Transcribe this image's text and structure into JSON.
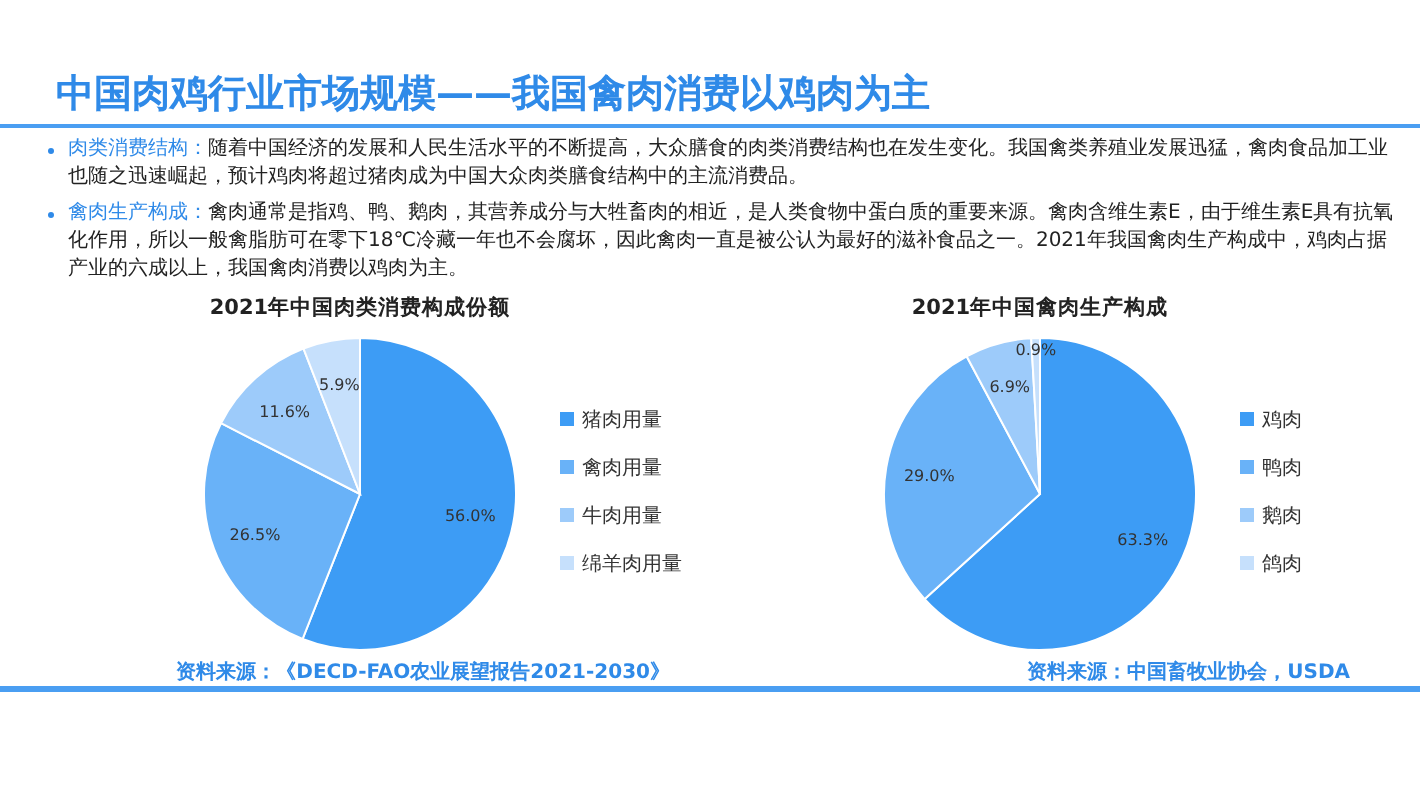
{
  "chart_data": [
    {
      "type": "other",
      "title": "中国肉鸡行业市场规模——我国禽肉消费以鸡肉为主",
      "annotations": [
        "肉类消费结构：随着中国经济的发展和人民生活水平的不断提高，大众膳食的肉类消费结构也在发生变化。我国禽类养殖业发展迅猛，禽肉食品加工业也随之迅速崛起，预计鸡肉将超过猪肉成为中国大众肉类膳食结构中的主流消费品。",
        "禽肉生产构成：禽肉通常是指鸡、鸭、鹅肉，其营养成分与大牲畜肉的相近，是人类食物中蛋白质的重要来源。禽肉含维生素E，由于维生素E具有抗氧化作用，所以一般禽脂肪可在零下18℃冷藏一年也不会腐坏，因此禽肉一直是被公认为最好的滋补食品之一。2021年我国禽肉生产构成中，鸡肉占据产业的六成以上，我国禽肉消费以鸡肉为主。"
      ]
    },
    {
      "type": "pie",
      "title": "2021年中国肉类消费构成份额",
      "categories": [
        "猪肉用量",
        "禽肉用量",
        "牛肉用量",
        "绵羊肉用量"
      ],
      "values": [
        56.0,
        26.5,
        11.6,
        5.9
      ],
      "value_labels": [
        "56.0%",
        "26.5%",
        "11.6%",
        "5.9%"
      ],
      "colors": [
        "#3d9cf5",
        "#69b2f8",
        "#9dcbfa",
        "#c6e0fc"
      ],
      "legend": "right",
      "annotations": [
        "资料来源：《DECD-FAO农业展望报告2021-2030》"
      ]
    },
    {
      "type": "pie",
      "title": "2021年中国禽肉生产构成",
      "categories": [
        "鸡肉",
        "鸭肉",
        "鹅肉",
        "鸽肉"
      ],
      "values": [
        63.3,
        29.0,
        6.9,
        0.9
      ],
      "value_labels": [
        "63.3%",
        "29.0%",
        "6.9%",
        "0.9%"
      ],
      "colors": [
        "#3d9cf5",
        "#69b2f8",
        "#9dcbfa",
        "#c6e0fc"
      ],
      "legend": "right",
      "annotations": [
        "资料来源：中国畜牧业协会，USDA"
      ]
    }
  ]
}
